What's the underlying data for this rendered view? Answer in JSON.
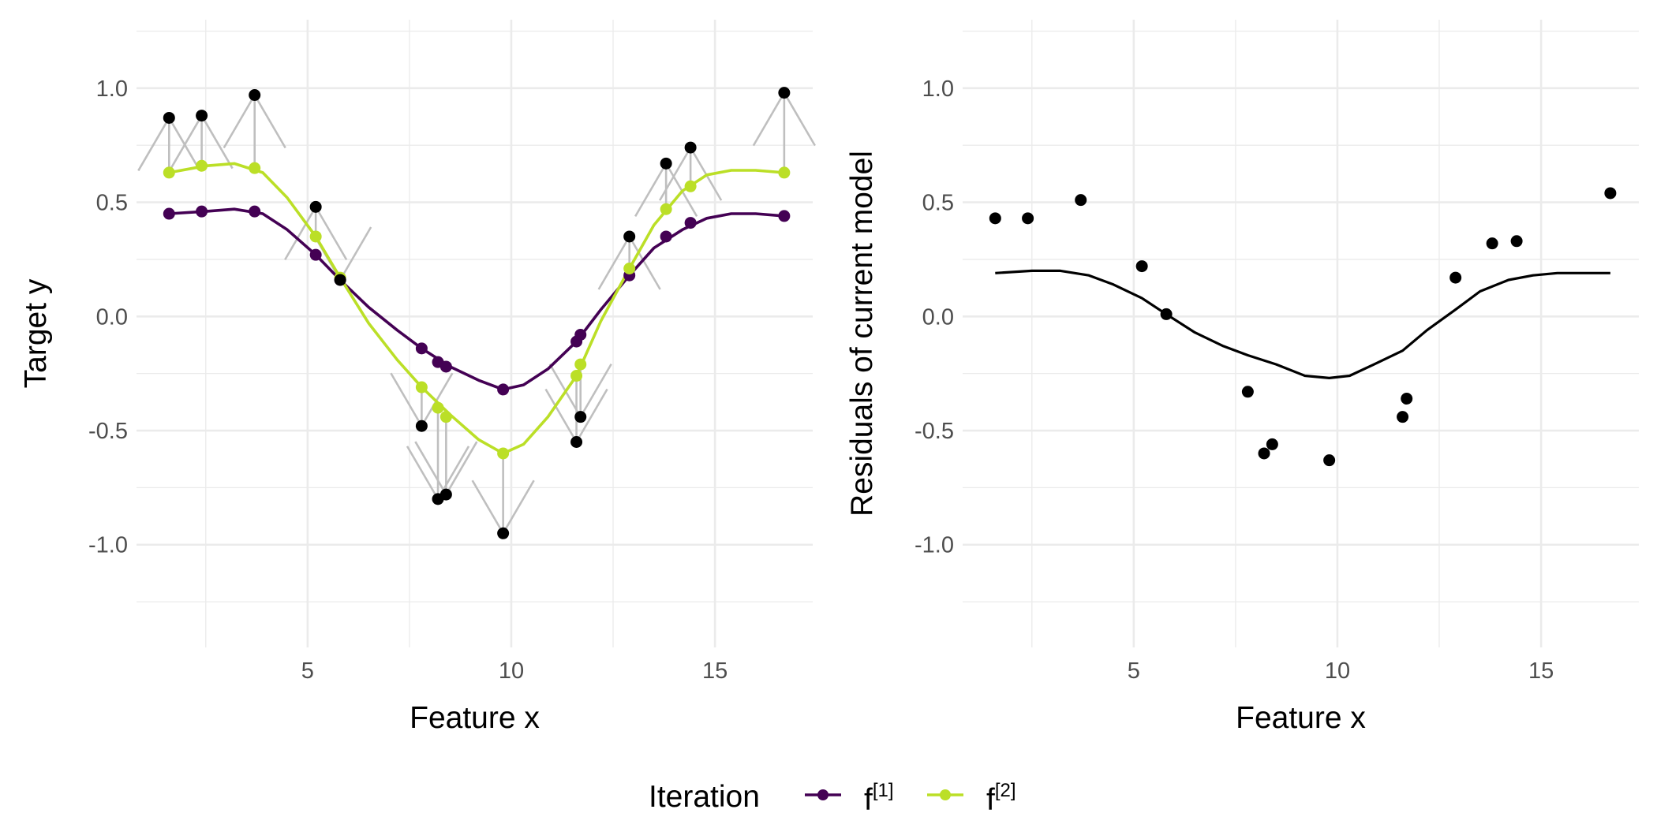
{
  "chart_data": [
    {
      "type": "line",
      "panel": "left",
      "xlabel": "Feature x",
      "ylabel": "Target y",
      "xlim": [
        0.8,
        17.4
      ],
      "ylim": [
        -1.45,
        1.3
      ],
      "x_ticks": [
        5,
        10,
        15
      ],
      "x_tick_labels": [
        "5",
        "10",
        "15"
      ],
      "y_ticks": [
        1.0,
        0.5,
        0.0,
        -0.5,
        -1.0
      ],
      "y_tick_labels": [
        "1.0",
        "0.5",
        "0.0",
        "-0.5",
        "-1.0"
      ],
      "grid": true,
      "observations": {
        "x": [
          1.6,
          2.4,
          3.7,
          5.2,
          5.8,
          7.8,
          8.2,
          8.4,
          9.8,
          11.6,
          11.7,
          12.9,
          13.8,
          14.4,
          16.7
        ],
        "y": [
          0.87,
          0.88,
          0.97,
          0.48,
          0.16,
          -0.48,
          -0.8,
          -0.78,
          -0.95,
          -0.55,
          -0.44,
          0.35,
          0.67,
          0.74,
          0.98
        ],
        "color": "#000000"
      },
      "series": [
        {
          "label": "f",
          "label_superscript": "[1]",
          "color": "#440154",
          "points_x": [
            1.6,
            2.4,
            3.7,
            5.2,
            5.8,
            7.8,
            8.2,
            8.4,
            9.8,
            11.6,
            11.7,
            12.9,
            13.8,
            14.4,
            16.7
          ],
          "points_y": [
            0.45,
            0.46,
            0.46,
            0.27,
            0.16,
            -0.14,
            -0.2,
            -0.22,
            -0.32,
            -0.11,
            -0.08,
            0.18,
            0.35,
            0.41,
            0.44
          ],
          "curve_x": [
            1.6,
            2.5,
            3.2,
            3.9,
            4.5,
            5.2,
            5.8,
            6.5,
            7.2,
            7.8,
            8.5,
            9.2,
            9.8,
            10.3,
            10.9,
            11.6,
            12.2,
            12.9,
            13.5,
            14.2,
            14.8,
            15.4,
            16.0,
            16.7
          ],
          "curve_y": [
            0.45,
            0.46,
            0.47,
            0.45,
            0.38,
            0.27,
            0.16,
            0.04,
            -0.06,
            -0.14,
            -0.22,
            -0.28,
            -0.32,
            -0.3,
            -0.23,
            -0.11,
            0.03,
            0.18,
            0.3,
            0.38,
            0.43,
            0.45,
            0.45,
            0.44
          ]
        },
        {
          "label": "f",
          "label_superscript": "[2]",
          "color": "#BBDF27",
          "points_x": [
            1.6,
            2.4,
            3.7,
            5.2,
            5.8,
            7.8,
            8.2,
            8.4,
            9.8,
            11.6,
            11.7,
            12.9,
            13.8,
            14.4,
            16.7
          ],
          "points_y": [
            0.63,
            0.66,
            0.65,
            0.35,
            0.17,
            -0.31,
            -0.4,
            -0.44,
            -0.6,
            -0.26,
            -0.21,
            0.21,
            0.47,
            0.57,
            0.63
          ],
          "curve_x": [
            1.6,
            2.5,
            3.2,
            3.9,
            4.5,
            5.2,
            5.8,
            6.5,
            7.2,
            7.8,
            8.5,
            9.2,
            9.8,
            10.3,
            10.9,
            11.6,
            12.2,
            12.9,
            13.5,
            14.2,
            14.8,
            15.4,
            16.0,
            16.7
          ],
          "curve_y": [
            0.63,
            0.66,
            0.67,
            0.63,
            0.52,
            0.35,
            0.17,
            -0.03,
            -0.19,
            -0.31,
            -0.43,
            -0.54,
            -0.6,
            -0.56,
            -0.44,
            -0.26,
            -0.02,
            0.21,
            0.4,
            0.55,
            0.62,
            0.64,
            0.64,
            0.63
          ]
        }
      ],
      "arrow_color": "#bfbfbf"
    },
    {
      "type": "scatter",
      "panel": "right",
      "xlabel": "Feature x",
      "ylabel": "Residuals of current model",
      "xlim": [
        0.8,
        17.4
      ],
      "ylim": [
        -1.45,
        1.3
      ],
      "x_ticks": [
        5,
        10,
        15
      ],
      "x_tick_labels": [
        "5",
        "10",
        "15"
      ],
      "y_ticks": [
        1.0,
        0.5,
        0.0,
        -0.5,
        -1.0
      ],
      "y_tick_labels": [
        "1.0",
        "0.5",
        "0.0",
        "-0.5",
        "-1.0"
      ],
      "grid": true,
      "residuals": {
        "x": [
          1.6,
          2.4,
          3.7,
          5.2,
          5.8,
          7.8,
          8.2,
          8.4,
          9.8,
          11.6,
          11.7,
          12.9,
          13.8,
          14.4,
          16.7
        ],
        "y": [
          0.43,
          0.43,
          0.51,
          0.22,
          0.01,
          -0.33,
          -0.6,
          -0.56,
          -0.63,
          -0.44,
          -0.36,
          0.17,
          0.32,
          0.33,
          0.54
        ],
        "color": "#000000"
      },
      "fit_curve": {
        "color": "#000000",
        "x": [
          1.6,
          2.5,
          3.2,
          3.9,
          4.5,
          5.2,
          5.8,
          6.5,
          7.2,
          7.8,
          8.5,
          9.2,
          9.8,
          10.3,
          10.9,
          11.6,
          12.2,
          12.9,
          13.5,
          14.2,
          14.8,
          15.4,
          16.0,
          16.7
        ],
        "y": [
          0.19,
          0.2,
          0.2,
          0.18,
          0.14,
          0.08,
          0.01,
          -0.07,
          -0.13,
          -0.17,
          -0.21,
          -0.26,
          -0.27,
          -0.26,
          -0.21,
          -0.15,
          -0.06,
          0.03,
          0.11,
          0.16,
          0.18,
          0.19,
          0.19,
          0.19
        ]
      }
    }
  ],
  "legend": {
    "title": "Iteration",
    "position": "bottom",
    "items": [
      {
        "label": "f",
        "superscript": "[1]",
        "color": "#440154"
      },
      {
        "label": "f",
        "superscript": "[2]",
        "color": "#BBDF27"
      }
    ]
  }
}
